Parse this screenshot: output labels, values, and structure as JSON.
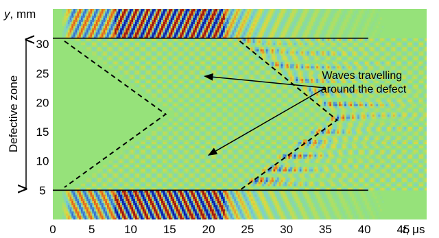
{
  "chart_data": {
    "type": "heatmap",
    "x_unit_label": "t, μs",
    "y_unit_label": "y, mm",
    "x_ticks": [
      0,
      5,
      10,
      15,
      20,
      25,
      30,
      35,
      40,
      45
    ],
    "y_ticks": [
      5,
      10,
      15,
      20,
      25,
      30
    ],
    "xlim": [
      0,
      48
    ],
    "ylim": [
      0,
      36
    ],
    "side_label": "Defective zone",
    "annotation": [
      "Waves travelling",
      "around the defect"
    ],
    "defect_zone_y": [
      5,
      31
    ],
    "boundary_lines": [
      {
        "y": 31,
        "t_start": 0,
        "t_end": 40.5
      },
      {
        "y": 5,
        "t_start": 0,
        "t_end": 40.5
      }
    ],
    "wavefront_dashed_lines": [
      {
        "points": [
          [
            1.5,
            30.5
          ],
          [
            14.5,
            18
          ],
          [
            1.5,
            5.5
          ]
        ]
      },
      {
        "points": [
          [
            24,
            30.5
          ],
          [
            36.5,
            17
          ],
          [
            24,
            5
          ]
        ]
      }
    ],
    "arrows": [
      {
        "from": [
          35,
          22.5
        ],
        "to": [
          19.5,
          24.5
        ]
      },
      {
        "from": [
          35,
          22.5
        ],
        "to": [
          20,
          11
        ]
      }
    ],
    "colormap": [
      "#0a1aa8",
      "#3a78d0",
      "#7ecfd0",
      "#96e27a",
      "#e0d640",
      "#e66a1e",
      "#9a1010"
    ]
  }
}
